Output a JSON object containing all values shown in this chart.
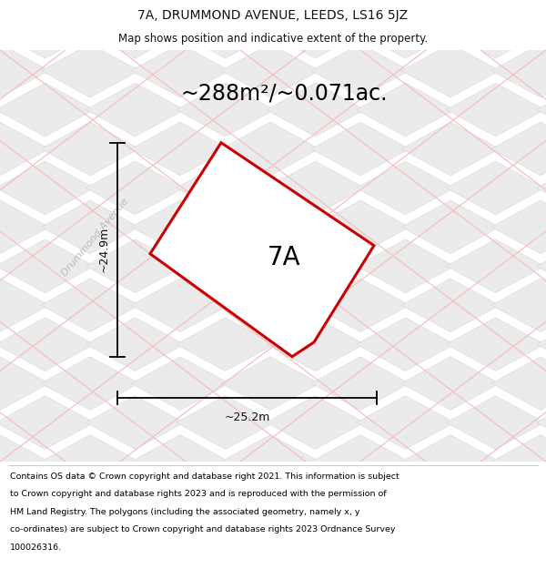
{
  "title": "7A, DRUMMOND AVENUE, LEEDS, LS16 5JZ",
  "subtitle": "Map shows position and indicative extent of the property.",
  "area_label": "~288m²/~0.071ac.",
  "plot_label": "7A",
  "dim_h": "~24.9m",
  "dim_w": "~25.2m",
  "street_label": "Drummond Avenue",
  "footer_lines": [
    "Contains OS data © Crown copyright and database right 2021. This information is subject",
    "to Crown copyright and database rights 2023 and is reproduced with the permission of",
    "HM Land Registry. The polygons (including the associated geometry, namely x, y",
    "co-ordinates) are subject to Crown copyright and database rights 2023 Ordnance Survey",
    "100026316."
  ],
  "bg_color": "#f7f7f7",
  "tile_fill": "#ebebeb",
  "tile_stroke": "#d8d8d8",
  "road_color": "#f5c0c0",
  "plot_fill": "#ffffff",
  "plot_stroke": "#cc0000",
  "title_fontsize": 10,
  "subtitle_fontsize": 8.5,
  "footer_fontsize": 6.8,
  "area_fontsize": 17,
  "plot_label_fontsize": 20,
  "dim_fontsize": 9,
  "street_fontsize": 8,
  "title_color": "#111111",
  "subtitle_color": "#111111",
  "street_color": "#bbbbbb",
  "dim_color": "#111111"
}
